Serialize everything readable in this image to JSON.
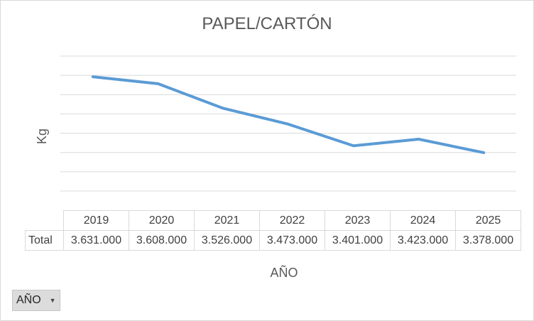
{
  "chart_data": {
    "type": "line",
    "title": "PAPEL/CARTÓN",
    "xlabel": "AÑO",
    "ylabel": "Kg",
    "categories": [
      "2019",
      "2020",
      "2021",
      "2022",
      "2023",
      "2024",
      "2025"
    ],
    "series": [
      {
        "name": "Total",
        "values": [
          3631000,
          3608000,
          3526000,
          3473000,
          3401000,
          3423000,
          3378000
        ],
        "display_values": [
          "3.631.000",
          "3.608.000",
          "3.526.000",
          "3.473.000",
          "3.401.000",
          "3.423.000",
          "3.378.000"
        ]
      }
    ],
    "ylim": [
      3250000,
      3700000
    ],
    "grid": true,
    "legend": "none",
    "data_table": true,
    "line_color": "#5b9bd5",
    "grid_color": "#d9d9d9"
  },
  "filter_button": {
    "label": "AÑO",
    "icon": "dropdown-arrow-icon"
  }
}
